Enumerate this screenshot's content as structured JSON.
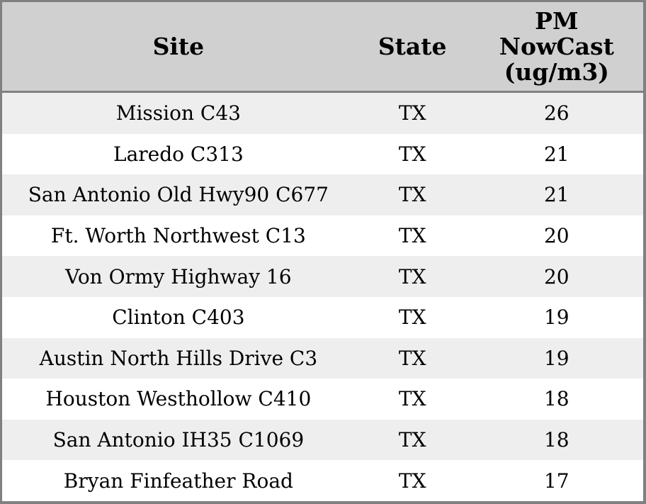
{
  "table": {
    "columns": [
      {
        "id": "site",
        "label": "Site"
      },
      {
        "id": "state",
        "label": "State"
      },
      {
        "id": "pm_nowcast",
        "label": "PM NowCast (ug/m3)",
        "label_lines": [
          "PM",
          "NowCast",
          "(ug/m3)"
        ]
      }
    ],
    "rows": [
      {
        "site": "Mission C43",
        "state": "TX",
        "pm_nowcast": "26"
      },
      {
        "site": "Laredo C313",
        "state": "TX",
        "pm_nowcast": "21"
      },
      {
        "site": "San Antonio Old Hwy90 C677",
        "state": "TX",
        "pm_nowcast": "21"
      },
      {
        "site": "Ft. Worth Northwest C13",
        "state": "TX",
        "pm_nowcast": "20"
      },
      {
        "site": "Von Ormy Highway 16",
        "state": "TX",
        "pm_nowcast": "20"
      },
      {
        "site": "Clinton C403",
        "state": "TX",
        "pm_nowcast": "19"
      },
      {
        "site": "Austin North Hills Drive C3",
        "state": "TX",
        "pm_nowcast": "19"
      },
      {
        "site": "Houston Westhollow C410",
        "state": "TX",
        "pm_nowcast": "18"
      },
      {
        "site": "San Antonio IH35 C1069",
        "state": "TX",
        "pm_nowcast": "18"
      },
      {
        "site": "Bryan Finfeather Road",
        "state": "TX",
        "pm_nowcast": "17"
      }
    ]
  },
  "chart_data": {
    "type": "table",
    "columns": [
      "Site",
      "State",
      "PM NowCast (ug/m3)"
    ],
    "rows": [
      [
        "Mission C43",
        "TX",
        26
      ],
      [
        "Laredo C313",
        "TX",
        21
      ],
      [
        "San Antonio Old Hwy90 C677",
        "TX",
        21
      ],
      [
        "Ft. Worth Northwest C13",
        "TX",
        20
      ],
      [
        "Von Ormy Highway 16",
        "TX",
        20
      ],
      [
        "Clinton C403",
        "TX",
        19
      ],
      [
        "Austin North Hills Drive C3",
        "TX",
        19
      ],
      [
        "Houston Westhollow C410",
        "TX",
        18
      ],
      [
        "San Antonio IH35 C1069",
        "TX",
        18
      ],
      [
        "Bryan Finfeather Road",
        "TX",
        17
      ]
    ]
  },
  "colors": {
    "header_bg": "#d0d0d0",
    "row_bg": "#ffffff",
    "row_alt_bg": "#eeeeee",
    "border": "#808080",
    "text": "#000000"
  }
}
